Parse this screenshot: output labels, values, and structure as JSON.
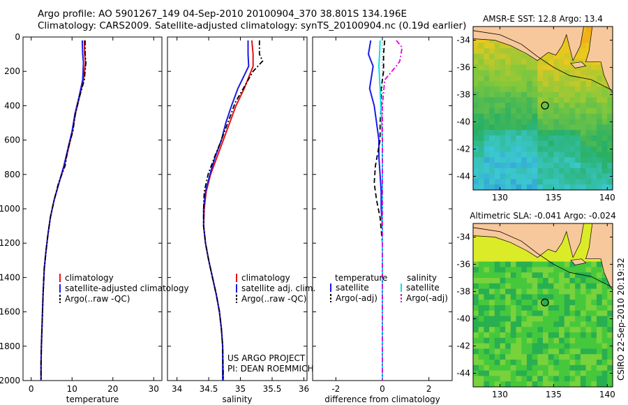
{
  "header": {
    "line1": "Argo profile: AO 5901267_149 04-Sep-2010 20100904_370 38.801S 134.196E",
    "line2": "Climatology: CARS2009. Satellite-adjusted climatology: synTS_20100904.nc (0.19d earlier)"
  },
  "credit": "CSIRO 22-Sep-2010 20:19:32",
  "project": {
    "line1": "US ARGO PROJECT",
    "line2": "PI: DEAN ROEMMICH"
  },
  "colors": {
    "climatology": "#e8101a",
    "satellite": "#1a1ae6",
    "argo": "#000000",
    "sal_satellite": "#00e5e5",
    "sal_argo": "#e000e0"
  },
  "chart_data": [
    {
      "type": "line",
      "xlabel": "temperature",
      "ylim": [
        2000,
        0
      ],
      "xlim": [
        -2,
        32
      ],
      "xticks": [
        "0",
        "10",
        "20",
        "30"
      ],
      "yticks": [
        "0",
        "200",
        "400",
        "600",
        "800",
        "1000",
        "1200",
        "1400",
        "1600",
        "1800",
        "2000"
      ],
      "legend": [
        "climatology",
        "satellite-adjusted climatology",
        "Argo(..raw -QC)"
      ],
      "series": [
        {
          "name": "climatology",
          "color": "#e8101a",
          "style": "solid",
          "x": [
            13.0,
            13.1,
            13.3,
            12.8,
            11.8,
            10.8,
            10.1,
            9.1,
            8.1,
            6.8,
            5.6,
            4.7,
            4.1,
            3.6,
            3.2,
            2.9,
            2.7,
            2.5,
            2.4,
            2.4
          ],
          "y": [
            20,
            100,
            150,
            250,
            350,
            450,
            550,
            650,
            750,
            850,
            950,
            1050,
            1150,
            1250,
            1350,
            1500,
            1650,
            1800,
            1900,
            2000
          ]
        },
        {
          "name": "satellite-adjusted climatology",
          "color": "#1a1ae6",
          "style": "solid",
          "x": [
            12.5,
            12.6,
            12.8,
            12.6,
            11.7,
            10.7,
            10.0,
            9.0,
            8.0,
            6.8,
            5.6,
            4.7,
            4.1,
            3.6,
            3.2,
            2.9,
            2.7,
            2.5,
            2.4,
            2.4
          ],
          "y": [
            20,
            100,
            150,
            250,
            350,
            450,
            550,
            650,
            750,
            850,
            950,
            1050,
            1150,
            1250,
            1350,
            1500,
            1650,
            1800,
            1900,
            2000
          ]
        },
        {
          "name": "Argo(..raw -QC)",
          "color": "#000000",
          "style": "dashdot",
          "x": [
            13.2,
            13.2,
            13.4,
            13.0,
            11.8,
            10.8,
            10.2,
            9.0,
            8.3,
            6.7,
            5.6,
            4.7,
            4.1,
            3.6,
            3.2,
            2.9,
            2.7,
            2.5,
            2.4,
            2.4
          ],
          "y": [
            20,
            100,
            150,
            250,
            350,
            450,
            550,
            650,
            750,
            850,
            950,
            1050,
            1150,
            1250,
            1350,
            1500,
            1650,
            1800,
            1900,
            2000
          ]
        }
      ]
    },
    {
      "type": "line",
      "xlabel": "salinity",
      "ylim": [
        2000,
        0
      ],
      "xlim": [
        33.85,
        36.05
      ],
      "xticks": [
        "34",
        "34.5",
        "35",
        "35.5",
        "36"
      ],
      "legend": [
        "climatology",
        "satellite adj. clim.",
        "Argo(..raw -QC)"
      ],
      "series": [
        {
          "name": "climatology",
          "color": "#e8101a",
          "style": "solid",
          "x": [
            35.18,
            35.2,
            35.2,
            35.06,
            34.93,
            34.83,
            34.73,
            34.63,
            34.53,
            34.46,
            34.43,
            34.42,
            34.45,
            34.5,
            34.56,
            34.62,
            34.67,
            34.7,
            34.72,
            34.73
          ],
          "y": [
            20,
            100,
            170,
            300,
            400,
            500,
            600,
            700,
            800,
            900,
            1000,
            1100,
            1200,
            1300,
            1400,
            1500,
            1600,
            1700,
            1800,
            2000
          ]
        },
        {
          "name": "satellite adj. clim.",
          "color": "#1a1ae6",
          "style": "solid",
          "x": [
            35.12,
            35.12,
            35.13,
            34.96,
            34.86,
            34.77,
            34.7,
            34.6,
            34.52,
            34.45,
            34.42,
            34.42,
            34.45,
            34.5,
            34.56,
            34.62,
            34.67,
            34.7,
            34.72,
            34.72
          ],
          "y": [
            20,
            100,
            170,
            300,
            400,
            500,
            600,
            700,
            800,
            900,
            1000,
            1100,
            1200,
            1300,
            1400,
            1500,
            1600,
            1700,
            1800,
            2000
          ]
        },
        {
          "name": "Argo(..raw -QC)",
          "color": "#000000",
          "style": "dashdot",
          "x": [
            35.3,
            35.3,
            35.35,
            35.2,
            34.92,
            34.8,
            34.7,
            34.59,
            34.49,
            34.43,
            34.42,
            34.42,
            34.45,
            34.5,
            34.56,
            34.62,
            34.67,
            34.7,
            34.72,
            34.73
          ],
          "y": [
            20,
            100,
            140,
            200,
            380,
            500,
            600,
            700,
            800,
            900,
            1000,
            1100,
            1200,
            1300,
            1400,
            1500,
            1600,
            1700,
            1800,
            2000
          ]
        }
      ]
    },
    {
      "type": "line",
      "xlabel": "difference from climatology",
      "ylim": [
        2000,
        0
      ],
      "xlim": [
        -3,
        3
      ],
      "xticks": [
        "-2",
        "0",
        "2"
      ],
      "legend_temperature_title": "temperature",
      "legend_salinity_title": "salinity",
      "legend": [
        "satellite",
        "Argo(-adj)",
        "satellite",
        "Argo(-adj)"
      ],
      "series": [
        {
          "name": "satellite",
          "group": "temperature",
          "color": "#1a1ae6",
          "style": "solid",
          "x": [
            -0.5,
            -0.6,
            -0.4,
            -0.55,
            -0.35,
            -0.25,
            -0.15,
            -0.15,
            -0.1,
            -0.05,
            -0.05,
            0,
            0,
            0,
            0,
            0
          ],
          "y": [
            20,
            100,
            170,
            300,
            400,
            500,
            600,
            700,
            800,
            900,
            1000,
            1100,
            1200,
            1400,
            1700,
            2000
          ]
        },
        {
          "name": "Argo(-adj)",
          "group": "temperature",
          "color": "#000000",
          "style": "dashed",
          "x": [
            0.1,
            0.05,
            0.05,
            -0.05,
            -0.05,
            -0.1,
            -0.1,
            -0.3,
            -0.35,
            -0.25,
            -0.1,
            0,
            0,
            0
          ],
          "y": [
            20,
            100,
            200,
            300,
            400,
            500,
            600,
            750,
            850,
            950,
            1050,
            1200,
            1500,
            2000
          ]
        },
        {
          "name": "satellite",
          "group": "salinity",
          "color": "#00e5e5",
          "style": "solid",
          "x": [
            -0.1,
            -0.12,
            -0.15,
            -0.1,
            -0.05,
            0,
            0,
            0
          ],
          "y": [
            20,
            100,
            170,
            300,
            450,
            600,
            1000,
            2000
          ]
        },
        {
          "name": "Argo(-adj)",
          "group": "salinity",
          "color": "#e000e0",
          "style": "dashdot",
          "x": [
            0.6,
            0.85,
            0.75,
            0.65,
            0.1,
            0,
            0
          ],
          "y": [
            20,
            60,
            140,
            160,
            250,
            400,
            2000
          ]
        }
      ]
    },
    {
      "type": "heatmap",
      "title": "AMSR-E SST: 12.8 Argo: 13.4",
      "xlim": [
        127.5,
        140.5
      ],
      "ylim": [
        -45,
        -33
      ],
      "xticks": [
        "130",
        "135",
        "140"
      ],
      "yticks": [
        "-34",
        "-36",
        "-38",
        "-40",
        "-42",
        "-44"
      ],
      "marker": {
        "lon": 134.196,
        "lat": -38.801
      }
    },
    {
      "type": "heatmap",
      "title": "Altimetric SLA: -0.041 Argo: -0.024",
      "xlim": [
        127.5,
        140.5
      ],
      "ylim": [
        -45,
        -33
      ],
      "xticks": [
        "130",
        "135",
        "140"
      ],
      "yticks": [
        "-34",
        "-36",
        "-38",
        "-40",
        "-42",
        "-44"
      ],
      "marker": {
        "lon": 134.196,
        "lat": -38.801
      }
    }
  ]
}
